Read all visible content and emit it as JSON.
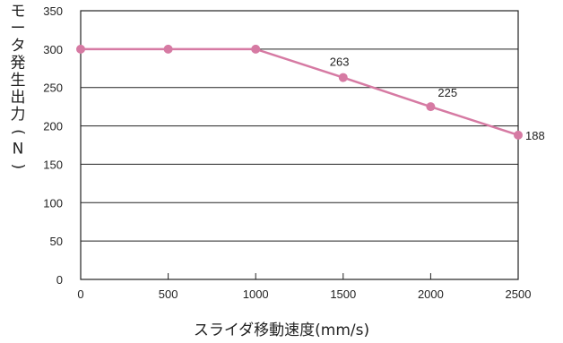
{
  "chart_data": {
    "type": "line",
    "title": "",
    "xlabel": "スライダ移動速度(mm/s)",
    "ylabel": "モータ発生出力(N)",
    "xlim": [
      0,
      2500
    ],
    "ylim": [
      0,
      350
    ],
    "x_ticks": [
      0,
      500,
      1000,
      1500,
      2000,
      2500
    ],
    "y_ticks": [
      0,
      50,
      100,
      150,
      200,
      250,
      300,
      350
    ],
    "grid": "horizontal",
    "series": [
      {
        "x": [
          0,
          500,
          1000,
          1500,
          2000,
          2500
        ],
        "values": [
          300,
          300,
          300,
          263,
          225,
          188
        ],
        "color": "#d67aa3"
      }
    ],
    "data_labels": [
      {
        "x": 1500,
        "y": 263,
        "text": "263"
      },
      {
        "x": 2000,
        "y": 225,
        "text": "225"
      },
      {
        "x": 2500,
        "y": 188,
        "text": "188"
      }
    ]
  }
}
